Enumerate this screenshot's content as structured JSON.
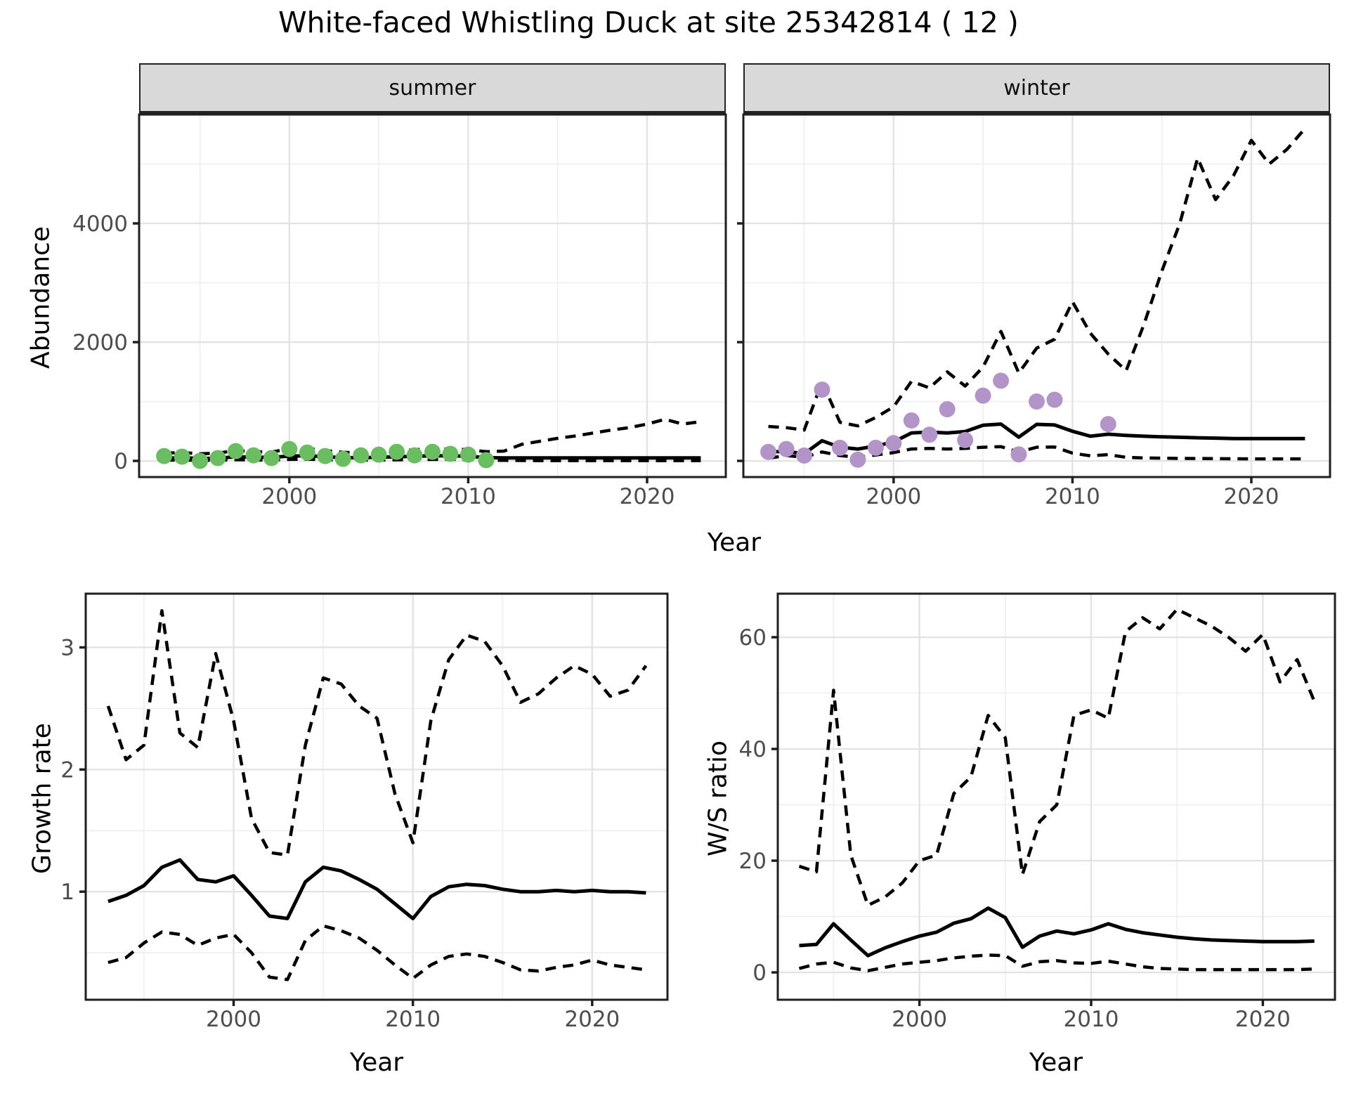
{
  "title": "White-faced Whistling Duck at site 25342814 ( 12 )",
  "facets": [
    "summer",
    "winter"
  ],
  "axis_labels": {
    "abundance": "Abundance",
    "year": "Year",
    "growth_rate": "Growth rate",
    "ws_ratio": "W/S ratio"
  },
  "colors": {
    "summer_points": "#6abd60",
    "winter_points": "#b394c9",
    "line": "#000000",
    "strip_bg": "#d9d9d9",
    "grid_major": "#e3e3e3",
    "grid_minor": "#f0f0f0",
    "panel_border": "#1f1f1f",
    "tick_text": "#4d4d4d"
  },
  "chart_data": [
    {
      "id": "abundance-summer",
      "type": "line",
      "facet": "summer",
      "ylabel": "Abundance",
      "xlabel": "Year",
      "x_domain": [
        1991.6,
        2024.4
      ],
      "y_domain": [
        -272,
        5834
      ],
      "x_ticks": [
        2000,
        2010,
        2020
      ],
      "x_minor": [
        1995,
        2005,
        2015
      ],
      "y_ticks": [
        0,
        2000,
        4000
      ],
      "y_minor": [
        1000,
        3000,
        5000
      ],
      "years": [
        1993,
        1994,
        1995,
        1996,
        1997,
        1998,
        1999,
        2000,
        2001,
        2002,
        2003,
        2004,
        2005,
        2006,
        2007,
        2008,
        2009,
        2010,
        2011,
        2012,
        2013,
        2014,
        2015,
        2016,
        2017,
        2018,
        2019,
        2020,
        2021,
        2022,
        2023
      ],
      "series": [
        {
          "name": "upper_ci",
          "style": "dashed",
          "values": [
            130,
            140,
            120,
            130,
            175,
            155,
            150,
            200,
            210,
            175,
            145,
            135,
            155,
            165,
            190,
            200,
            200,
            190,
            155,
            165,
            280,
            330,
            380,
            420,
            470,
            520,
            560,
            620,
            700,
            620,
            660
          ]
        },
        {
          "name": "lower_ci",
          "style": "dashed",
          "values": [
            12,
            15,
            10,
            12,
            20,
            16,
            15,
            25,
            28,
            20,
            14,
            13,
            16,
            18,
            22,
            25,
            25,
            22,
            12,
            8,
            6,
            5,
            5,
            5,
            5,
            5,
            5,
            5,
            5,
            5,
            5
          ]
        },
        {
          "name": "mean",
          "style": "solid",
          "values": [
            45,
            55,
            40,
            45,
            70,
            62,
            60,
            80,
            88,
            70,
            55,
            52,
            62,
            68,
            78,
            85,
            85,
            78,
            55,
            50,
            50,
            50,
            50,
            50,
            50,
            50,
            50,
            50,
            50,
            50,
            50
          ]
        }
      ],
      "points": {
        "color_key": "summer_points",
        "years": [
          1993,
          1994,
          1995,
          1996,
          1997,
          1998,
          1999,
          2000,
          2001,
          2002,
          2003,
          2004,
          2005,
          2006,
          2007,
          2008,
          2009,
          2010,
          2011
        ],
        "values": [
          82,
          71,
          0,
          47,
          165,
          94,
          47,
          200,
          141,
          82,
          35,
          94,
          106,
          153,
          94,
          153,
          118,
          106,
          12
        ]
      }
    },
    {
      "id": "abundance-winter",
      "type": "line",
      "facet": "winter",
      "ylabel": "Abundance",
      "xlabel": "Year",
      "x_domain": [
        1991.6,
        2024.4
      ],
      "y_domain": [
        -272,
        5834
      ],
      "x_ticks": [
        2000,
        2010,
        2020
      ],
      "x_minor": [
        1995,
        2005,
        2015
      ],
      "y_ticks": [
        0,
        2000,
        4000
      ],
      "y_minor": [
        1000,
        3000,
        5000
      ],
      "years": [
        1993,
        1994,
        1995,
        1996,
        1997,
        1998,
        1999,
        2000,
        2001,
        2002,
        2003,
        2004,
        2005,
        2006,
        2007,
        2008,
        2009,
        2010,
        2011,
        2012,
        2013,
        2014,
        2015,
        2016,
        2017,
        2018,
        2019,
        2020,
        2021,
        2022,
        2023
      ],
      "series": [
        {
          "name": "upper_ci",
          "style": "dashed",
          "values": [
            580,
            560,
            520,
            1330,
            650,
            590,
            730,
            910,
            1340,
            1230,
            1500,
            1260,
            1580,
            2180,
            1480,
            1900,
            2050,
            2680,
            2150,
            1800,
            1520,
            2300,
            3200,
            4000,
            5100,
            4400,
            4800,
            5400,
            5000,
            5250,
            5600
          ]
        },
        {
          "name": "lower_ci",
          "style": "dashed",
          "values": [
            45,
            90,
            60,
            150,
            90,
            60,
            100,
            140,
            200,
            210,
            200,
            210,
            230,
            240,
            150,
            230,
            235,
            130,
            85,
            105,
            60,
            50,
            45,
            42,
            40,
            38,
            36,
            35,
            35,
            35,
            35
          ]
        },
        {
          "name": "mean",
          "style": "solid",
          "values": [
            150,
            160,
            120,
            340,
            230,
            200,
            250,
            320,
            470,
            485,
            470,
            495,
            600,
            620,
            400,
            615,
            605,
            500,
            415,
            450,
            430,
            415,
            405,
            398,
            390,
            383,
            377,
            376,
            376,
            376,
            376
          ]
        }
      ],
      "points": {
        "color_key": "winter_points",
        "years": [
          1993,
          1994,
          1995,
          1996,
          1997,
          1998,
          1999,
          2000,
          2001,
          2002,
          2003,
          2004,
          2005,
          2006,
          2007,
          2008,
          2009,
          2012
        ],
        "values": [
          150,
          200,
          90,
          1200,
          220,
          20,
          220,
          300,
          680,
          440,
          870,
          350,
          1100,
          1350,
          110,
          1000,
          1030,
          620
        ]
      }
    },
    {
      "id": "growth-rate",
      "type": "line",
      "facet": null,
      "ylabel": "Growth rate",
      "xlabel": "Year",
      "x_domain": [
        1991.75,
        2024.2
      ],
      "y_domain": [
        0.115,
        3.44
      ],
      "x_ticks": [
        2000,
        2010,
        2020
      ],
      "x_minor": [
        1995,
        2005,
        2015
      ],
      "y_ticks": [
        1,
        2,
        3
      ],
      "y_minor": [
        0.5,
        1.5,
        2.5
      ],
      "years": [
        1993,
        1994,
        1995,
        1996,
        1997,
        1998,
        1999,
        2000,
        2001,
        2002,
        2003,
        2004,
        2005,
        2006,
        2007,
        2008,
        2009,
        2010,
        2011,
        2012,
        2013,
        2014,
        2015,
        2016,
        2017,
        2018,
        2019,
        2020,
        2021,
        2022,
        2023
      ],
      "series": [
        {
          "name": "upper_ci",
          "style": "dashed",
          "values": [
            2.52,
            2.08,
            2.2,
            3.3,
            2.3,
            2.18,
            2.95,
            2.4,
            1.6,
            1.32,
            1.3,
            2.2,
            2.75,
            2.7,
            2.52,
            2.42,
            1.8,
            1.4,
            2.4,
            2.9,
            3.1,
            3.05,
            2.85,
            2.55,
            2.62,
            2.75,
            2.85,
            2.78,
            2.6,
            2.65,
            2.85
          ]
        },
        {
          "name": "lower_ci",
          "style": "dashed",
          "values": [
            0.42,
            0.46,
            0.58,
            0.67,
            0.65,
            0.56,
            0.62,
            0.65,
            0.5,
            0.3,
            0.28,
            0.6,
            0.72,
            0.68,
            0.62,
            0.52,
            0.4,
            0.29,
            0.4,
            0.47,
            0.49,
            0.47,
            0.42,
            0.36,
            0.35,
            0.38,
            0.4,
            0.44,
            0.4,
            0.38,
            0.36
          ]
        },
        {
          "name": "mean",
          "style": "solid",
          "values": [
            0.92,
            0.97,
            1.05,
            1.2,
            1.26,
            1.1,
            1.08,
            1.13,
            0.97,
            0.8,
            0.78,
            1.08,
            1.2,
            1.17,
            1.1,
            1.02,
            0.9,
            0.78,
            0.96,
            1.04,
            1.06,
            1.05,
            1.02,
            1.0,
            1.0,
            1.01,
            1.0,
            1.01,
            1.0,
            1.0,
            0.99
          ]
        }
      ],
      "points": null
    },
    {
      "id": "ws-ratio",
      "type": "line",
      "facet": null,
      "ylabel": "W/S ratio",
      "xlabel": "Year",
      "x_domain": [
        1991.75,
        2024.2
      ],
      "y_domain": [
        -4.9,
        67.8
      ],
      "x_ticks": [
        2000,
        2010,
        2020
      ],
      "x_minor": [
        1995,
        2005,
        2015
      ],
      "y_ticks": [
        0,
        20,
        40,
        60
      ],
      "y_minor": [
        10,
        30,
        50
      ],
      "years": [
        1993,
        1994,
        1995,
        1996,
        1997,
        1998,
        1999,
        2000,
        2001,
        2002,
        2003,
        2004,
        2005,
        2006,
        2007,
        2008,
        2009,
        2010,
        2011,
        2012,
        2013,
        2014,
        2015,
        2016,
        2017,
        2018,
        2019,
        2020,
        2021,
        2022,
        2023
      ],
      "series": [
        {
          "name": "upper_ci",
          "style": "dashed",
          "values": [
            19,
            18,
            50.5,
            21,
            12,
            13.5,
            16,
            20,
            21,
            32,
            35,
            46,
            42,
            17.5,
            27,
            30,
            46,
            47,
            45.5,
            61,
            63.5,
            61.5,
            65,
            63.5,
            62,
            60,
            57.5,
            60.5,
            52,
            56,
            48.5
          ]
        },
        {
          "name": "lower_ci",
          "style": "dashed",
          "values": [
            0.7,
            1.5,
            1.8,
            0.8,
            0.3,
            0.9,
            1.5,
            1.8,
            2.1,
            2.6,
            2.9,
            3.1,
            3.0,
            1.1,
            1.9,
            2.1,
            1.7,
            1.6,
            2.0,
            1.5,
            1.0,
            0.7,
            0.6,
            0.5,
            0.5,
            0.5,
            0.5,
            0.5,
            0.5,
            0.5,
            0.6
          ]
        },
        {
          "name": "mean",
          "style": "solid",
          "values": [
            4.8,
            5.0,
            8.7,
            5.8,
            3.0,
            4.4,
            5.5,
            6.5,
            7.2,
            8.8,
            9.6,
            11.5,
            9.8,
            4.5,
            6.5,
            7.4,
            6.9,
            7.6,
            8.7,
            7.7,
            7.1,
            6.7,
            6.3,
            6.0,
            5.8,
            5.7,
            5.6,
            5.5,
            5.5,
            5.5,
            5.6
          ]
        }
      ],
      "points": null
    }
  ]
}
